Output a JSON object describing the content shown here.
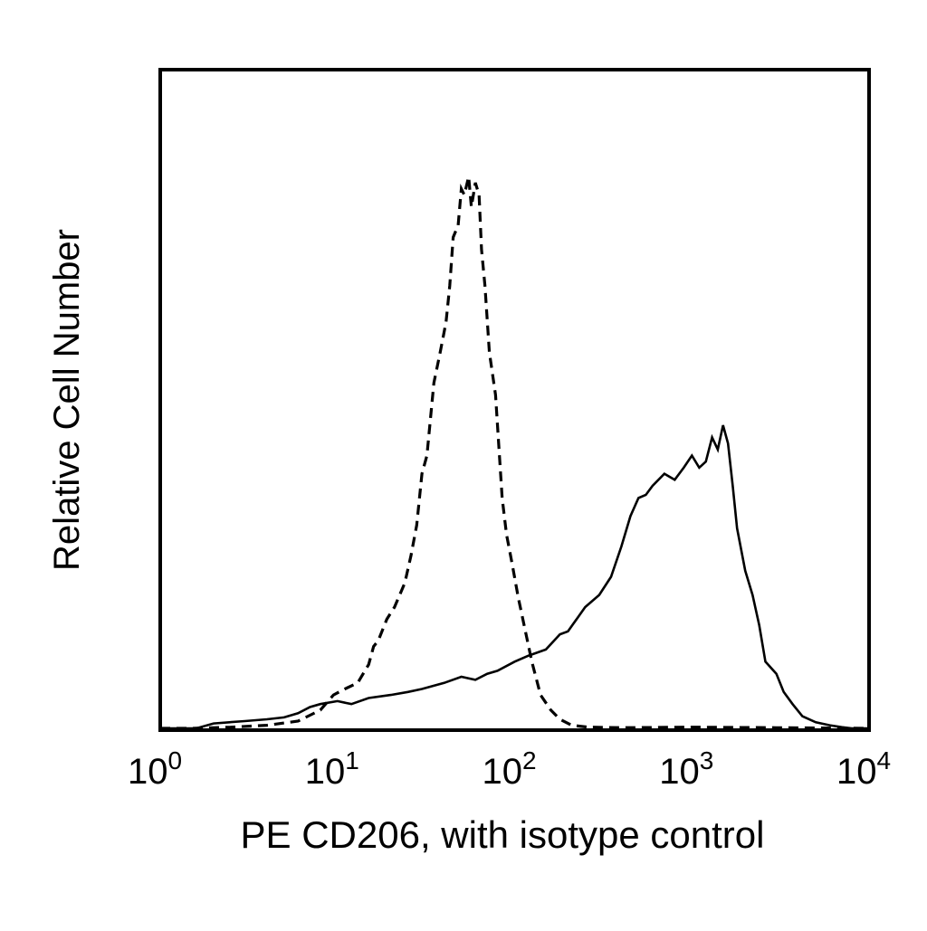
{
  "chart_data": {
    "type": "line",
    "title": "",
    "xlabel": "PE CD206, with isotype control",
    "ylabel": "Relative Cell Number",
    "x_scale": "log10",
    "xlim": [
      1,
      10000
    ],
    "ylim": [
      0,
      100
    ],
    "grid": false,
    "legend": "none",
    "x_ticks": [
      {
        "base": "10",
        "exp": "0",
        "value": 1
      },
      {
        "base": "10",
        "exp": "1",
        "value": 10
      },
      {
        "base": "10",
        "exp": "2",
        "value": 100
      },
      {
        "base": "10",
        "exp": "3",
        "value": 1000
      },
      {
        "base": "10",
        "exp": "4",
        "value": 10000
      }
    ],
    "series": [
      {
        "style": "dashed",
        "color": "#000000",
        "points": [
          [
            1,
            0
          ],
          [
            1.5,
            0
          ],
          [
            2.5,
            0.2
          ],
          [
            4,
            0.5
          ],
          [
            6,
            1.2
          ],
          [
            8,
            3.0
          ],
          [
            9.5,
            5.5
          ],
          [
            11,
            6.5
          ],
          [
            13,
            7.5
          ],
          [
            15,
            10.5
          ],
          [
            16,
            13.5
          ],
          [
            17,
            14.5
          ],
          [
            19,
            18.0
          ],
          [
            21,
            20.0
          ],
          [
            24,
            24.0
          ],
          [
            26,
            28.5
          ],
          [
            28,
            33.5
          ],
          [
            30,
            42.0
          ],
          [
            32,
            45.0
          ],
          [
            35,
            57.0
          ],
          [
            38,
            62.0
          ],
          [
            41,
            67.0
          ],
          [
            43,
            73.0
          ],
          [
            45,
            81.0
          ],
          [
            48,
            83.0
          ],
          [
            50,
            89.0
          ],
          [
            52,
            88.0
          ],
          [
            55,
            91.0
          ],
          [
            57,
            86.0
          ],
          [
            60,
            90.0
          ],
          [
            63,
            88.0
          ],
          [
            65,
            79.0
          ],
          [
            68,
            73.0
          ],
          [
            72,
            62.0
          ],
          [
            78,
            55.0
          ],
          [
            85,
            38.0
          ],
          [
            90,
            32.0
          ],
          [
            97,
            27.0
          ],
          [
            105,
            21.5
          ],
          [
            115,
            16.0
          ],
          [
            125,
            11.0
          ],
          [
            140,
            5.5
          ],
          [
            160,
            3.0
          ],
          [
            180,
            1.5
          ],
          [
            210,
            0.5
          ],
          [
            260,
            0.2
          ],
          [
            400,
            0.1
          ],
          [
            1000,
            0.2
          ],
          [
            3000,
            0.1
          ],
          [
            10000,
            0
          ]
        ]
      },
      {
        "style": "solid",
        "color": "#000000",
        "points": [
          [
            1,
            0
          ],
          [
            1.6,
            0
          ],
          [
            2,
            0.8
          ],
          [
            3,
            1.2
          ],
          [
            4,
            1.5
          ],
          [
            5,
            1.8
          ],
          [
            6,
            2.5
          ],
          [
            7,
            3.5
          ],
          [
            8,
            4.0
          ],
          [
            10,
            4.5
          ],
          [
            12,
            4.0
          ],
          [
            15,
            5.0
          ],
          [
            20,
            5.5
          ],
          [
            25,
            6.0
          ],
          [
            30,
            6.5
          ],
          [
            40,
            7.5
          ],
          [
            50,
            8.5
          ],
          [
            60,
            8.0
          ],
          [
            70,
            9.0
          ],
          [
            80,
            9.5
          ],
          [
            100,
            11.0
          ],
          [
            120,
            12.0
          ],
          [
            150,
            13.0
          ],
          [
            180,
            15.5
          ],
          [
            200,
            16.0
          ],
          [
            250,
            20.0
          ],
          [
            300,
            22.0
          ],
          [
            350,
            25.0
          ],
          [
            400,
            30.0
          ],
          [
            450,
            35.0
          ],
          [
            500,
            38.0
          ],
          [
            550,
            38.5
          ],
          [
            600,
            40.0
          ],
          [
            700,
            42.0
          ],
          [
            800,
            41.0
          ],
          [
            900,
            43.0
          ],
          [
            1000,
            45.0
          ],
          [
            1100,
            43.0
          ],
          [
            1200,
            44.0
          ],
          [
            1300,
            48.0
          ],
          [
            1400,
            46.0
          ],
          [
            1500,
            50.0
          ],
          [
            1600,
            47.0
          ],
          [
            1700,
            40.0
          ],
          [
            1800,
            33.0
          ],
          [
            2000,
            26.0
          ],
          [
            2200,
            22.0
          ],
          [
            2400,
            17.0
          ],
          [
            2600,
            11.0
          ],
          [
            3000,
            9.0
          ],
          [
            3300,
            6.0
          ],
          [
            3700,
            4.0
          ],
          [
            4200,
            2.0
          ],
          [
            5000,
            1.0
          ],
          [
            6000,
            0.5
          ],
          [
            7000,
            0.2
          ],
          [
            8000,
            0
          ],
          [
            10000,
            0
          ]
        ]
      }
    ]
  }
}
